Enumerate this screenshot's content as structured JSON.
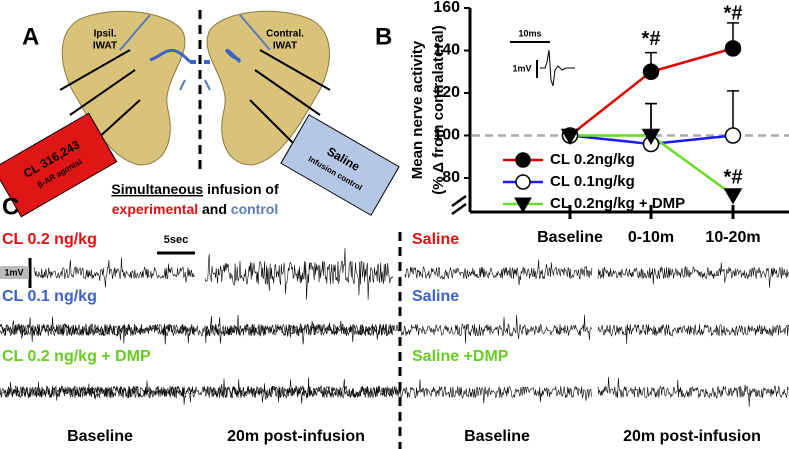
{
  "panel_a": {
    "label": "A",
    "left_depot": [
      "Ipsil.",
      "IWAT"
    ],
    "right_depot": [
      "Contral.",
      "IWAT"
    ],
    "drug_box": [
      "CL 316,243",
      "β-AR agonist"
    ],
    "control_box": [
      "Saline",
      "Infusion control"
    ],
    "caption": {
      "underlined": "Simultaneous",
      "rest": "infusion of",
      "experimental": "experimental",
      "and": "and",
      "control": "control"
    }
  },
  "chart_data": {
    "type": "line",
    "label": "B",
    "ylabel": [
      "Mean nerve activity",
      "(% Δ from contralateral)"
    ],
    "categories": [
      "Baseline",
      "0-10m",
      "10-20m"
    ],
    "ylim": [
      64,
      160
    ],
    "yticks": [
      80,
      100,
      120,
      140,
      160
    ],
    "reference_line": 100,
    "reference_color": "#aaaaaa",
    "inset": {
      "time": "10ms",
      "amplitude": "1mV"
    },
    "series": [
      {
        "name": "CL 0.2ng/kg",
        "color": "#e00000",
        "marker": "circle",
        "marker_fill": "#000000",
        "values": [
          100,
          130,
          141
        ],
        "errors": [
          0,
          9,
          12
        ]
      },
      {
        "name": "CL 0.1ng/kg",
        "color": "#1a1aff",
        "marker": "circle",
        "marker_fill": "#ffffff",
        "values": [
          100,
          96,
          100
        ],
        "errors": [
          0,
          19,
          21
        ]
      },
      {
        "name": "CL 0.2ng/kg + DMP",
        "color": "#66dd22",
        "marker": "triangle",
        "marker_fill": "#000000",
        "values": [
          100,
          100,
          72
        ],
        "errors": [
          0,
          15,
          2
        ]
      }
    ],
    "annotations": [
      {
        "text": "*#",
        "category": 1,
        "value": 145
      },
      {
        "text": "*#",
        "category": 2,
        "value": 157
      },
      {
        "text": "*#",
        "category": 2,
        "value": 80
      }
    ]
  },
  "panel_c": {
    "label": "C",
    "left_rows": [
      {
        "text": "CL 0.2 ng/kg",
        "color": "#e01010"
      },
      {
        "text": "CL 0.1 ng/kg",
        "color": "#3a62c8"
      },
      {
        "text": "CL 0.2 ng/kg + DMP",
        "color": "#66cc22"
      }
    ],
    "right_rows": [
      {
        "text": "Saline",
        "color": "#e01010"
      },
      {
        "text": "Saline",
        "color": "#3a62c8"
      },
      {
        "text": "Saline +DMP",
        "color": "#66cc22"
      }
    ],
    "time_scale": "5sec",
    "amplitude_scale": "1mV",
    "columns": [
      "Baseline",
      "20m post-infusion",
      "Baseline",
      "20m post-infusion"
    ]
  }
}
